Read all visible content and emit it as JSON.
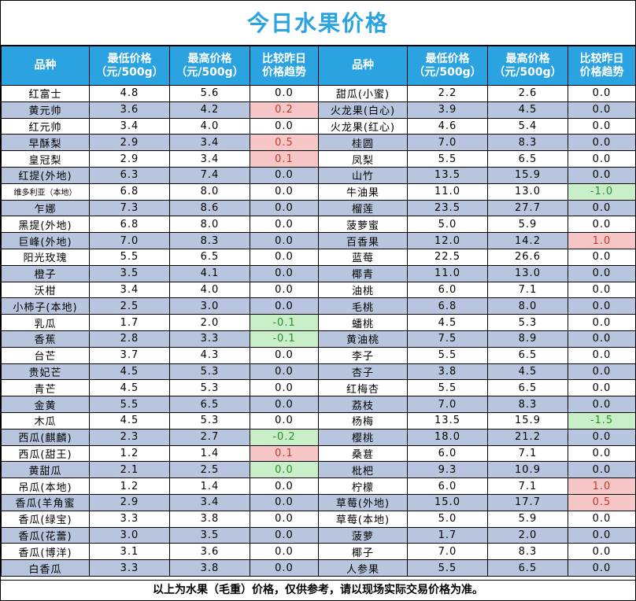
{
  "title": "今日水果价格",
  "headers": {
    "name": "品种",
    "low": "最低价格",
    "high": "最高价格",
    "compare": "比较昨日",
    "unit": "（元/500g）",
    "compare2": "价格趋势"
  },
  "rows": [
    {
      "l": [
        "红富士",
        "4.8",
        "5.6",
        "0.0"
      ],
      "r": [
        "甜瓜(小蜜)",
        "2.2",
        "2.6",
        "0.0"
      ]
    },
    {
      "l": [
        "黄元帅",
        "3.6",
        "4.2",
        "0.2"
      ],
      "r": [
        "火龙果(白心)",
        "3.9",
        "4.5",
        "0.0"
      ]
    },
    {
      "l": [
        "红元帅",
        "3.4",
        "4.0",
        "0.0"
      ],
      "r": [
        "火龙果(红心)",
        "4.6",
        "5.4",
        "0.0"
      ]
    },
    {
      "l": [
        "早酥梨",
        "2.9",
        "3.4",
        "0.5"
      ],
      "r": [
        "桂圆",
        "7.0",
        "8.3",
        "0.0"
      ]
    },
    {
      "l": [
        "皇冠梨",
        "2.9",
        "3.4",
        "0.1"
      ],
      "r": [
        "凤梨",
        "5.5",
        "6.5",
        "0.0"
      ]
    },
    {
      "l": [
        "红提(外地)",
        "6.3",
        "7.4",
        "0.0"
      ],
      "r": [
        "山竹",
        "13.5",
        "15.9",
        "0.0"
      ]
    },
    {
      "l": [
        "维多利亚（本地）",
        "6.8",
        "8.0",
        "0.0"
      ],
      "r": [
        "牛油果",
        "11.0",
        "13.0",
        "-1.0"
      ]
    },
    {
      "l": [
        "乍娜",
        "7.3",
        "8.6",
        "0.0"
      ],
      "r": [
        "榴莲",
        "23.5",
        "27.7",
        "0.0"
      ]
    },
    {
      "l": [
        "黑提(外地)",
        "6.8",
        "8.0",
        "0.0"
      ],
      "r": [
        "菠萝蜜",
        "5.0",
        "5.9",
        "0.0"
      ]
    },
    {
      "l": [
        "巨峰(外地)",
        "7.0",
        "8.3",
        "0.0"
      ],
      "r": [
        "百香果",
        "12.0",
        "14.2",
        "1.0"
      ]
    },
    {
      "l": [
        "阳光玫瑰",
        "5.5",
        "6.5",
        "0.0"
      ],
      "r": [
        "蓝莓",
        "22.5",
        "26.6",
        "0.0"
      ]
    },
    {
      "l": [
        "橙子",
        "3.5",
        "4.1",
        "0.0"
      ],
      "r": [
        "椰青",
        "11.0",
        "13.0",
        "0.0"
      ]
    },
    {
      "l": [
        "沃柑",
        "3.4",
        "4.0",
        "0.0"
      ],
      "r": [
        "油桃",
        "6.0",
        "7.1",
        "0.0"
      ]
    },
    {
      "l": [
        "小柿子(本地)",
        "2.5",
        "3.0",
        "0.0"
      ],
      "r": [
        "毛桃",
        "6.8",
        "8.0",
        "0.0"
      ]
    },
    {
      "l": [
        "乳瓜",
        "1.7",
        "2.0",
        "-0.1"
      ],
      "r": [
        "蟠桃",
        "4.5",
        "5.3",
        "0.0"
      ]
    },
    {
      "l": [
        "香蕉",
        "2.8",
        "3.3",
        "-0.1"
      ],
      "r": [
        "黄油桃",
        "7.5",
        "8.9",
        "0.0"
      ]
    },
    {
      "l": [
        "台芒",
        "3.7",
        "4.3",
        "0.0"
      ],
      "r": [
        "李子",
        "5.5",
        "6.5",
        "0.0"
      ]
    },
    {
      "l": [
        "贵妃芒",
        "4.5",
        "5.3",
        "0.0"
      ],
      "r": [
        "杏子",
        "3.8",
        "4.5",
        "0.0"
      ]
    },
    {
      "l": [
        "青芒",
        "4.5",
        "5.3",
        "0.0"
      ],
      "r": [
        "红梅杏",
        "5.5",
        "6.5",
        "0.0"
      ]
    },
    {
      "l": [
        "金黄",
        "5.5",
        "6.5",
        "0.0"
      ],
      "r": [
        "荔枝",
        "7.0",
        "8.3",
        "0.0"
      ]
    },
    {
      "l": [
        "木瓜",
        "4.5",
        "5.3",
        "0.0"
      ],
      "r": [
        "杨梅",
        "13.5",
        "15.9",
        "-1.5"
      ]
    },
    {
      "l": [
        "西瓜(麒麟)",
        "2.3",
        "2.7",
        "-0.2"
      ],
      "r": [
        "樱桃",
        "18.0",
        "21.2",
        "0.0"
      ]
    },
    {
      "l": [
        "西瓜(甜王)",
        "1.2",
        "1.4",
        "0.1"
      ],
      "r": [
        "桑葚",
        "6.0",
        "7.1",
        "0.0"
      ]
    },
    {
      "l": [
        "黄甜瓜",
        "2.1",
        "2.5",
        "0.0"
      ],
      "r": [
        "枇杷",
        "9.3",
        "10.9",
        "0.0"
      ]
    },
    {
      "l": [
        "吊瓜(本地)",
        "1.2",
        "1.4",
        "0.0"
      ],
      "r": [
        "柠檬",
        "6.0",
        "7.1",
        "1.0"
      ]
    },
    {
      "l": [
        "香瓜(羊角蜜",
        "2.9",
        "3.4",
        "0.0"
      ],
      "r": [
        "草莓(外地)",
        "15.0",
        "17.7",
        "0.5"
      ]
    },
    {
      "l": [
        "香瓜(绿宝)",
        "3.3",
        "3.8",
        "0.0"
      ],
      "r": [
        "草莓(本地)",
        "5.0",
        "5.9",
        "0.0"
      ]
    },
    {
      "l": [
        "香瓜(花蕾)",
        "3.0",
        "3.5",
        "0.0"
      ],
      "r": [
        "菠萝",
        "1.7",
        "2.0",
        "0.0"
      ]
    },
    {
      "l": [
        "香瓜(博洋)",
        "3.1",
        "3.6",
        "0.0"
      ],
      "r": [
        "椰子",
        "7.0",
        "8.3",
        "0.0"
      ]
    },
    {
      "l": [
        "白香瓜",
        "3.3",
        "3.8",
        "0.0"
      ],
      "r": [
        "人参果",
        "5.5",
        "6.5",
        "0.0"
      ]
    }
  ],
  "special_cells": {
    "up_left": [
      1,
      3,
      4,
      22
    ],
    "down_left": [
      14,
      15,
      21
    ],
    "green_zero_left": [
      23
    ],
    "up_right": [
      9,
      24,
      25
    ],
    "down_right": [
      6,
      20
    ]
  },
  "footer": "以上为水果（毛重）价格，仅供参考，请以现场实际交易价格为准。"
}
